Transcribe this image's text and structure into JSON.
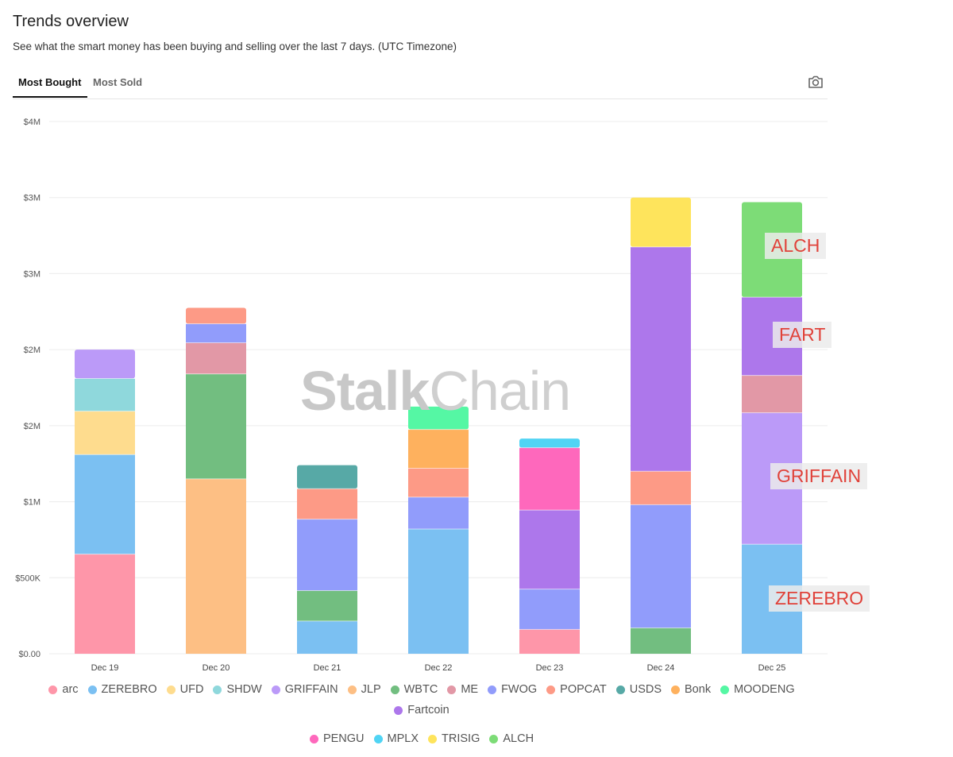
{
  "page": {
    "title": "Trends overview",
    "subtitle": "See what the smart money has been buying and selling over the last 7 days. (UTC Timezone)"
  },
  "tabs": [
    {
      "label": "Most Bought",
      "active": true
    },
    {
      "label": "Most Sold",
      "active": false
    }
  ],
  "toolbar": {
    "icon": "camera-icon"
  },
  "watermark": {
    "part1": "Stalk",
    "part2": "Chain"
  },
  "annotations": [
    "ALCH",
    "FART",
    "GRIFFAIN",
    "ZEREBRO"
  ],
  "colors": {
    "arc": "#fe96a9",
    "ZEREBRO": "#7bc0f2",
    "UFD": "#fedc8e",
    "SHDW": "#8fd8dc",
    "GRIFFAIN": "#bb9af8",
    "JLP": "#fdbf84",
    "WBTC": "#72be80",
    "ME": "#e298a6",
    "FWOG": "#919cfb",
    "POPCAT": "#fd9a86",
    "USDS": "#57a9a6",
    "Bonk": "#feb15e",
    "MOODENG": "#55f7a4",
    "Fartcoin": "#ad77eb",
    "PENGU": "#fe68bc",
    "MPLX": "#50d4f4",
    "TRISIG": "#fee45c",
    "ALCH": "#7ddc77"
  },
  "chart_data": {
    "type": "bar",
    "stacked": true,
    "categories": [
      "Dec 19",
      "Dec 20",
      "Dec 21",
      "Dec 22",
      "Dec 23",
      "Dec 24",
      "Dec 25"
    ],
    "y_ticks": [
      "$0.00",
      "$500K",
      "$1M",
      "$2M",
      "$2M",
      "$3M",
      "$3M",
      "$4M"
    ],
    "ylim": [
      0,
      3500000
    ],
    "grid": true,
    "legend_position": "bottom",
    "series": [
      {
        "name": "arc",
        "values": [
          655000,
          0,
          0,
          0,
          160000,
          0,
          0
        ]
      },
      {
        "name": "ZEREBRO",
        "values": [
          655000,
          0,
          215000,
          820000,
          0,
          0,
          720000
        ]
      },
      {
        "name": "UFD",
        "values": [
          285000,
          0,
          0,
          0,
          0,
          0,
          0
        ]
      },
      {
        "name": "SHDW",
        "values": [
          215000,
          0,
          0,
          0,
          0,
          0,
          0
        ]
      },
      {
        "name": "GRIFFAIN",
        "values": [
          190000,
          0,
          0,
          0,
          0,
          0,
          865000
        ]
      },
      {
        "name": "JLP",
        "values": [
          0,
          1150000,
          0,
          0,
          0,
          0,
          0
        ]
      },
      {
        "name": "WBTC",
        "values": [
          0,
          690000,
          200000,
          0,
          0,
          170000,
          0
        ]
      },
      {
        "name": "ME",
        "values": [
          0,
          205000,
          0,
          0,
          0,
          0,
          245000
        ]
      },
      {
        "name": "FWOG",
        "values": [
          0,
          125000,
          470000,
          210000,
          265000,
          810000,
          0
        ]
      },
      {
        "name": "POPCAT",
        "values": [
          0,
          105000,
          200000,
          190000,
          0,
          220000,
          0
        ]
      },
      {
        "name": "USDS",
        "values": [
          0,
          0,
          155000,
          0,
          0,
          0,
          0
        ]
      },
      {
        "name": "Bonk",
        "values": [
          0,
          0,
          0,
          255000,
          0,
          0,
          0
        ]
      },
      {
        "name": "MOODENG",
        "values": [
          0,
          0,
          0,
          150000,
          0,
          0,
          0
        ]
      },
      {
        "name": "Fartcoin",
        "values": [
          0,
          0,
          0,
          0,
          520000,
          1475000,
          515000
        ]
      },
      {
        "name": "PENGU",
        "values": [
          0,
          0,
          0,
          0,
          410000,
          0,
          0
        ]
      },
      {
        "name": "MPLX",
        "values": [
          0,
          0,
          0,
          0,
          60000,
          0,
          0
        ]
      },
      {
        "name": "TRISIG",
        "values": [
          0,
          0,
          0,
          0,
          0,
          325000,
          0
        ]
      },
      {
        "name": "ALCH",
        "values": [
          0,
          0,
          0,
          0,
          0,
          0,
          625000
        ]
      }
    ]
  }
}
